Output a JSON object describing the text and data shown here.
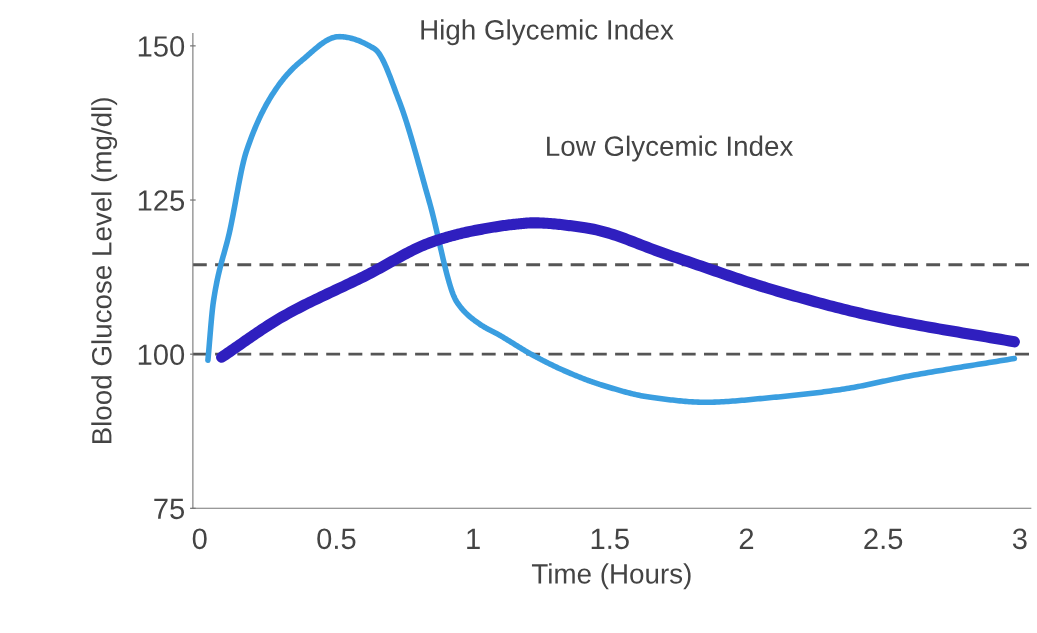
{
  "chart_data": {
    "type": "line",
    "xlabel": "Time (Hours)",
    "ylabel": "Blood Glucose Level (mg/dl)",
    "xlim": [
      -0.025,
      3.04
    ],
    "ylim": [
      75,
      152
    ],
    "xticks": [
      0,
      0.5,
      1,
      1.5,
      2,
      2.5,
      3
    ],
    "yticks": [
      75,
      100,
      125,
      150
    ],
    "grid": false,
    "legend": false,
    "marker": "none",
    "line_style": "solid",
    "series": [
      {
        "name": "High Glycemic Index",
        "color": "#3a9ee0",
        "x": [
          0.03,
          0.05,
          0.11,
          0.17,
          0.29,
          0.37,
          0.51,
          0.64,
          0.73,
          0.84,
          0.94,
          1.02,
          1.1,
          1.22,
          1.35,
          1.47,
          1.65,
          1.85,
          2.1,
          2.35,
          2.6,
          2.98
        ],
        "values": [
          99,
          108.5,
          120,
          132.8,
          143.7,
          147.5,
          151.5,
          149.5,
          141,
          124.7,
          108.5,
          105,
          103,
          99.8,
          97,
          95,
          93,
          92.2,
          93,
          94.3,
          96.5,
          99.3
        ]
      },
      {
        "name": "Low Glycemic Index",
        "color": "#2f1fbf",
        "x": [
          0.08,
          0.3,
          0.61,
          0.85,
          1.0,
          1.16,
          1.22,
          1.41,
          1.72,
          2.1,
          2.48,
          2.98
        ],
        "values": [
          99.5,
          106,
          112.8,
          118.2,
          120,
          121.1,
          121.3,
          120.5,
          116,
          110.4,
          106,
          102
        ]
      }
    ],
    "ref_lines": [
      {
        "axis": "y",
        "value": 100,
        "color": "#555555",
        "line_style": "dashed"
      },
      {
        "axis": "y",
        "value": 114.5,
        "color": "#555555",
        "line_style": "dashed"
      }
    ]
  }
}
